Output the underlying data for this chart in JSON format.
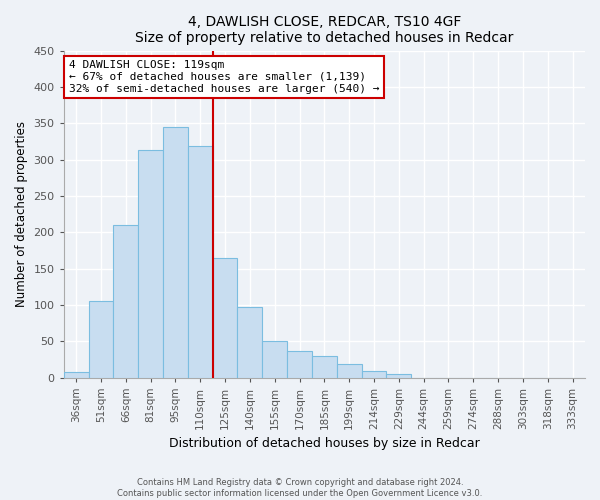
{
  "title": "4, DAWLISH CLOSE, REDCAR, TS10 4GF",
  "subtitle": "Size of property relative to detached houses in Redcar",
  "xlabel": "Distribution of detached houses by size in Redcar",
  "ylabel": "Number of detached properties",
  "bar_labels": [
    "36sqm",
    "51sqm",
    "66sqm",
    "81sqm",
    "95sqm",
    "110sqm",
    "125sqm",
    "140sqm",
    "155sqm",
    "170sqm",
    "185sqm",
    "199sqm",
    "214sqm",
    "229sqm",
    "244sqm",
    "259sqm",
    "274sqm",
    "288sqm",
    "303sqm",
    "318sqm",
    "333sqm"
  ],
  "bar_values": [
    7,
    105,
    210,
    313,
    345,
    318,
    165,
    97,
    50,
    37,
    29,
    18,
    9,
    5,
    0,
    0,
    0,
    0,
    0,
    0,
    0
  ],
  "bar_color": "#c8ddf0",
  "bar_edgecolor": "#7bbde0",
  "vline_x": 5.5,
  "vline_color": "#cc0000",
  "annotation_title": "4 DAWLISH CLOSE: 119sqm",
  "annotation_line1": "← 67% of detached houses are smaller (1,139)",
  "annotation_line2": "32% of semi-detached houses are larger (540) →",
  "annotation_box_edgecolor": "#cc0000",
  "ylim": [
    0,
    450
  ],
  "yticks": [
    0,
    50,
    100,
    150,
    200,
    250,
    300,
    350,
    400,
    450
  ],
  "footer1": "Contains HM Land Registry data © Crown copyright and database right 2024.",
  "footer2": "Contains public sector information licensed under the Open Government Licence v3.0.",
  "background_color": "#eef2f7",
  "grid_color": "#ffffff"
}
